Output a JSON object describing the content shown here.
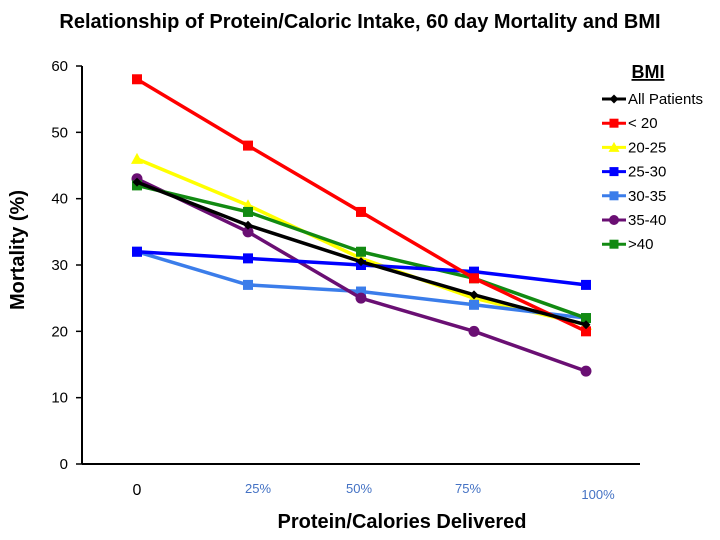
{
  "chart_data": {
    "type": "line",
    "title": "Relationship of Protein/Caloric Intake, 60 day Mortality and BMI",
    "xlabel": "Protein/Calories Delivered",
    "ylabel": "Mortality (%)",
    "x_ticks": [
      "0",
      "25%",
      "50%",
      "75%",
      "100%"
    ],
    "ylim": [
      0,
      60
    ],
    "y_ticks": [
      0,
      10,
      20,
      30,
      40,
      50,
      60
    ],
    "legend_title": "BMI",
    "legend_position": "top-right",
    "series": [
      {
        "name": "All Patients",
        "color": "#000000",
        "marker": "diamond",
        "values": [
          42.5,
          36,
          30.5,
          25.5,
          21
        ]
      },
      {
        "name": "< 20",
        "color": "#ff0000",
        "marker": "square",
        "values": [
          58,
          48,
          38,
          28,
          20
        ]
      },
      {
        "name": "20-25",
        "color": "#ffff00",
        "marker": "triangle",
        "values": [
          46,
          39,
          31,
          25,
          21
        ]
      },
      {
        "name": "25-30",
        "color": "#0000ff",
        "marker": "square",
        "values": [
          32,
          31,
          30,
          29,
          27
        ]
      },
      {
        "name": "30-35",
        "color": "#3b7dea",
        "marker": "square",
        "values": [
          32,
          27,
          26,
          24,
          22
        ]
      },
      {
        "name": "35-40",
        "color": "#6a0f73",
        "marker": "circle",
        "values": [
          43,
          35,
          25,
          20,
          14
        ]
      },
      {
        "name": ">40",
        "color": "#128a12",
        "marker": "square",
        "values": [
          42,
          38,
          32,
          28,
          22
        ]
      }
    ]
  }
}
